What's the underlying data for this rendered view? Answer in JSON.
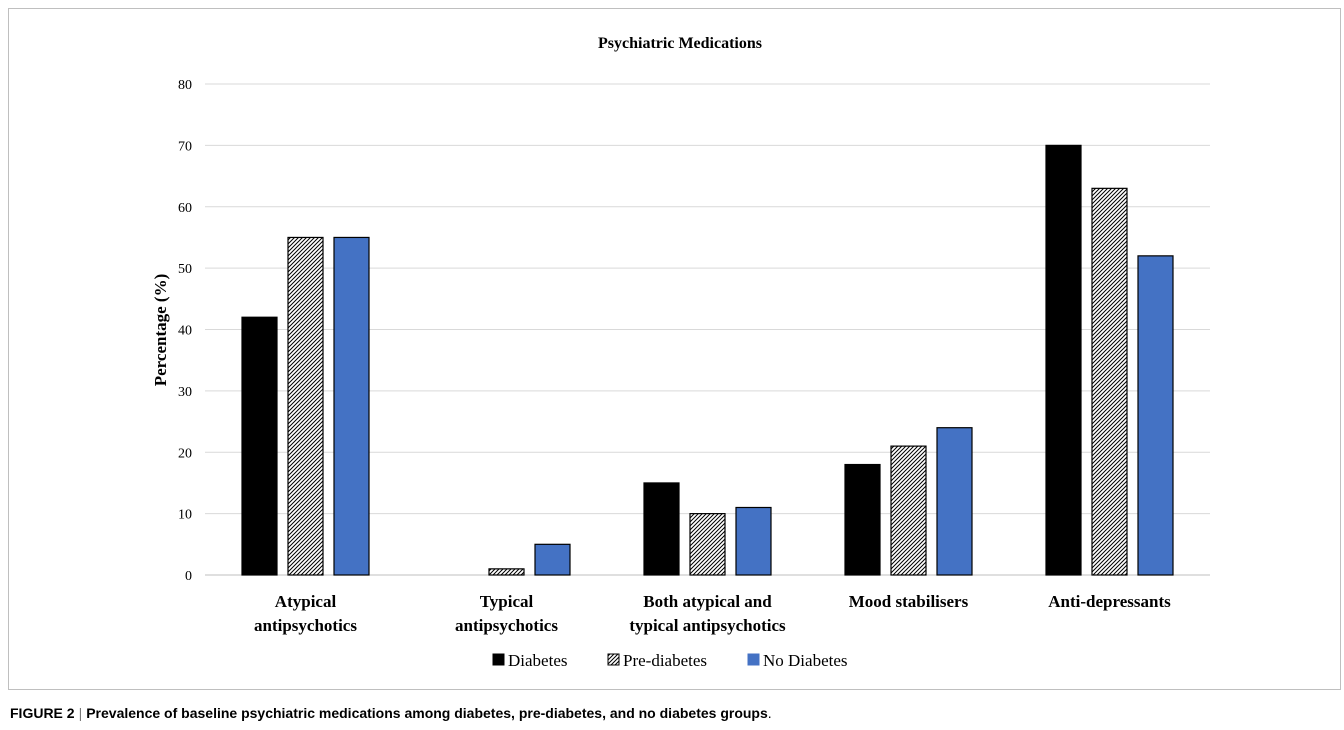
{
  "caption": {
    "label": "FIGURE 2",
    "separator": "|",
    "text": "Prevalence of baseline psychiatric medications among diabetes, pre-diabetes, and no diabetes groups",
    "end": "."
  },
  "chart_data": {
    "type": "bar",
    "title": "Psychiatric Medications",
    "xlabel": "",
    "ylabel": "Percentage (%)",
    "ylim": [
      0,
      80
    ],
    "yticks": [
      0,
      10,
      20,
      30,
      40,
      50,
      60,
      70,
      80
    ],
    "grid": true,
    "legend_position": "bottom",
    "categories": [
      [
        "Atypical",
        "antipsychotics"
      ],
      [
        "Typical",
        "antipsychotics"
      ],
      [
        "Both atypical and",
        "typical antipsychotics"
      ],
      [
        "Mood stabilisers"
      ],
      [
        "Anti-depressants"
      ]
    ],
    "series": [
      {
        "name": "Diabetes",
        "values": [
          42,
          0,
          15,
          18,
          70
        ],
        "color": "#000000",
        "pattern": "solid"
      },
      {
        "name": "Pre-diabetes",
        "values": [
          55,
          1,
          10,
          21,
          63
        ],
        "color": "#ffffff",
        "pattern": "diagonal-hatch"
      },
      {
        "name": "No Diabetes",
        "values": [
          55,
          5,
          11,
          24,
          52
        ],
        "color": "#4472c4",
        "pattern": "solid"
      }
    ]
  }
}
